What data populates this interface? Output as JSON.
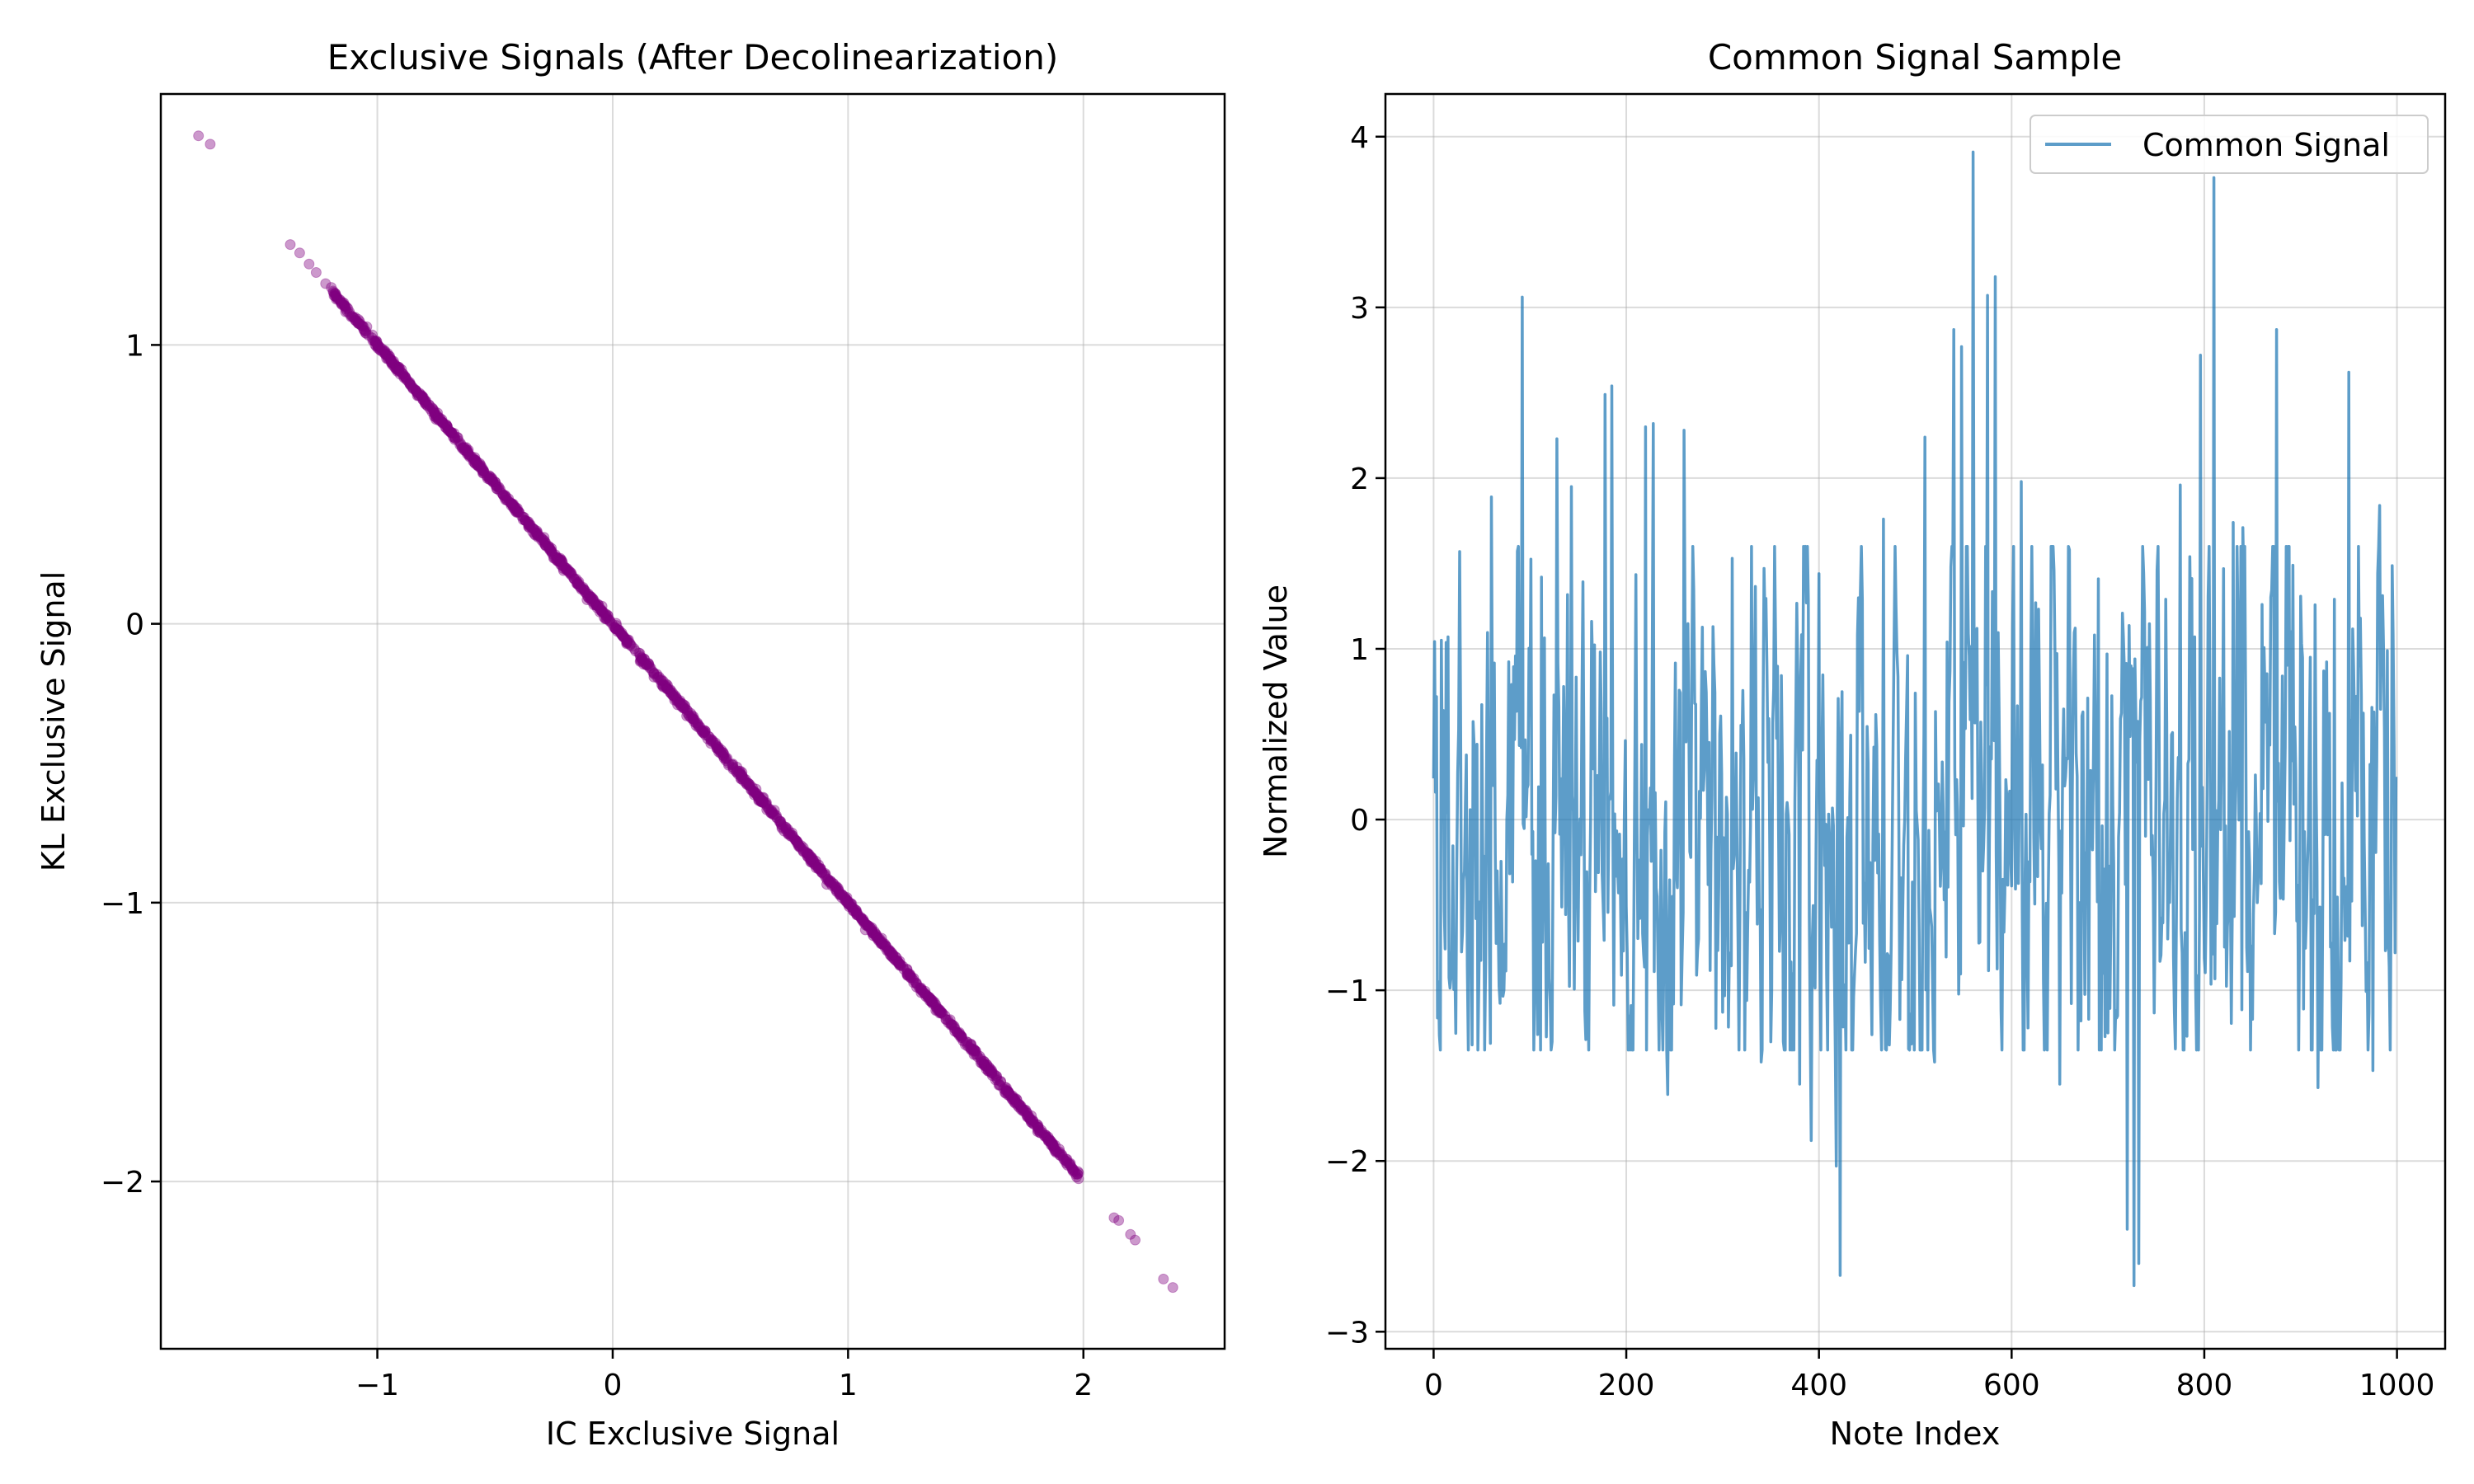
{
  "chart_data": [
    {
      "type": "scatter",
      "title": "Exclusive Signals (After Decolinearization)",
      "xlabel": "IC Exclusive Signal",
      "ylabel": "KL Exclusive Signal",
      "xlim": [
        -1.92,
        2.6
      ],
      "ylim": [
        -2.6,
        1.9
      ],
      "xticks": [
        -1,
        0,
        1,
        2
      ],
      "yticks": [
        -2,
        -1,
        0,
        1
      ],
      "xtick_labels": [
        "−1",
        "0",
        "1",
        "2"
      ],
      "ytick_labels": [
        "−2",
        "−1",
        "0",
        "1"
      ],
      "grid": true,
      "color": "#800080",
      "relationship": "y ≈ -x",
      "dense_range": [
        -1.2,
        1.98
      ],
      "outliers": [
        [
          -1.76,
          1.75
        ],
        [
          -1.71,
          1.72
        ],
        [
          -1.37,
          1.36
        ],
        [
          -1.33,
          1.33
        ],
        [
          -1.29,
          1.29
        ],
        [
          -1.26,
          1.26
        ],
        [
          -1.22,
          1.22
        ],
        [
          1.85,
          -1.84
        ],
        [
          1.88,
          -1.87
        ],
        [
          1.93,
          -1.92
        ],
        [
          1.98,
          -1.97
        ],
        [
          2.13,
          -2.13
        ],
        [
          2.15,
          -2.14
        ],
        [
          2.2,
          -2.19
        ],
        [
          2.22,
          -2.21
        ],
        [
          2.34,
          -2.35
        ],
        [
          2.38,
          -2.38
        ]
      ]
    },
    {
      "type": "line",
      "title": "Common Signal Sample",
      "xlabel": "Note Index",
      "ylabel": "Normalized Value",
      "xlim": [
        -50,
        1050
      ],
      "ylim": [
        -3.1,
        4.25
      ],
      "xticks": [
        0,
        200,
        400,
        600,
        800,
        1000
      ],
      "yticks": [
        -3,
        -2,
        -1,
        0,
        1,
        2,
        3,
        4
      ],
      "xtick_labels": [
        "0",
        "200",
        "400",
        "600",
        "800",
        "1000"
      ],
      "ytick_labels": [
        "−3",
        "−2",
        "−1",
        "0",
        "1",
        "2",
        "3",
        "4"
      ],
      "grid": true,
      "legend_position": "top-right",
      "color": "#1f77b4",
      "n_points": 1000,
      "series": [
        {
          "name": "Common Signal",
          "peaks": [
            [
              3,
              0.72
            ],
            [
              8,
              1.05
            ],
            [
              15,
              1.07
            ],
            [
              27,
              1.57
            ],
            [
              40,
              -1.32
            ],
            [
              60,
              1.89
            ],
            [
              73,
              -1.0
            ],
            [
              92,
              3.06
            ],
            [
              112,
              1.42
            ],
            [
              128,
              2.23
            ],
            [
              143,
              1.95
            ],
            [
              160,
              -0.96
            ],
            [
              178,
              2.49
            ],
            [
              185,
              2.54
            ],
            [
              205,
              -1.09
            ],
            [
              220,
              2.3
            ],
            [
              228,
              2.32
            ],
            [
              243,
              -1.61
            ],
            [
              260,
              2.28
            ],
            [
              290,
              1.13
            ],
            [
              310,
              1.53
            ],
            [
              330,
              1.6
            ],
            [
              340,
              -1.42
            ],
            [
              355,
              1.05
            ],
            [
              380,
              -1.55
            ],
            [
              392,
              -1.88
            ],
            [
              400,
              1.44
            ],
            [
              408,
              -0.91
            ],
            [
              418,
              -2.03
            ],
            [
              422,
              -2.67
            ],
            [
              440,
              1.08
            ],
            [
              455,
              -1.26
            ],
            [
              467,
              1.76
            ],
            [
              480,
              1.25
            ],
            [
              500,
              0.74
            ],
            [
              510,
              2.24
            ],
            [
              520,
              -1.42
            ],
            [
              540,
              2.87
            ],
            [
              548,
              2.77
            ],
            [
              560,
              3.91
            ],
            [
              575,
              3.07
            ],
            [
              583,
              3.18
            ],
            [
              610,
              1.98
            ],
            [
              625,
              1.27
            ],
            [
              650,
              -1.55
            ],
            [
              660,
              1.58
            ],
            [
              680,
              -1.17
            ],
            [
              690,
              1.41
            ],
            [
              700,
              -1.25
            ],
            [
              710,
              -1.15
            ],
            [
              720,
              -2.4
            ],
            [
              727,
              -2.73
            ],
            [
              732,
              -2.6
            ],
            [
              740,
              0.99
            ],
            [
              760,
              1.29
            ],
            [
              775,
              1.96
            ],
            [
              785,
              1.54
            ],
            [
              790,
              1.07
            ],
            [
              796,
              2.72
            ],
            [
              810,
              3.76
            ],
            [
              820,
              1.47
            ],
            [
              830,
              1.74
            ],
            [
              840,
              1.71
            ],
            [
              850,
              -1.17
            ],
            [
              860,
              1.26
            ],
            [
              875,
              2.87
            ],
            [
              890,
              1.1
            ],
            [
              903,
              -1.11
            ],
            [
              910,
              0.95
            ],
            [
              918,
              -1.57
            ],
            [
              935,
              1.29
            ],
            [
              950,
              2.62
            ],
            [
              962,
              1.18
            ],
            [
              975,
              -1.47
            ],
            [
              982,
              1.84
            ],
            [
              990,
              0.99
            ],
            [
              998,
              -0.78
            ],
            [
              1000,
              0.25
            ]
          ]
        }
      ]
    }
  ]
}
